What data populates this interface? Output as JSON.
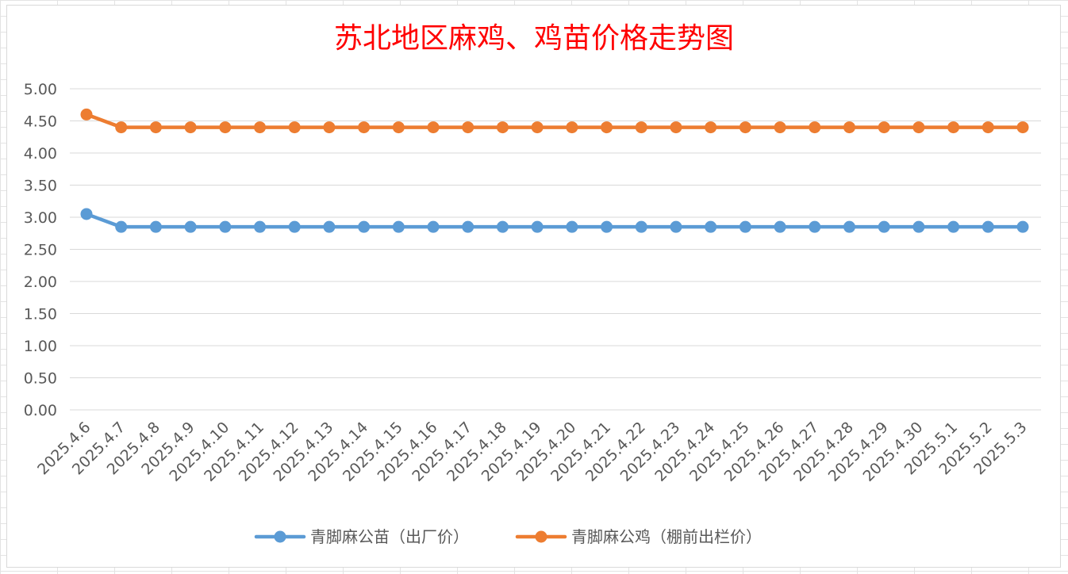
{
  "chart_data": {
    "type": "line",
    "title": "苏北地区麻鸡、鸡苗价格走势图",
    "title_color": "#ff0000",
    "categories": [
      "2025.4.6",
      "2025.4.7",
      "2025.4.8",
      "2025.4.9",
      "2025.4.10",
      "2025.4.11",
      "2025.4.12",
      "2025.4.13",
      "2025.4.14",
      "2025.4.15",
      "2025.4.16",
      "2025.4.17",
      "2025.4.18",
      "2025.4.19",
      "2025.4.20",
      "2025.4.21",
      "2025.4.22",
      "2025.4.23",
      "2025.4.24",
      "2025.4.25",
      "2025.4.26",
      "2025.4.27",
      "2025.4.28",
      "2025.4.29",
      "2025.4.30",
      "2025.5.1",
      "2025.5.2",
      "2025.5.3"
    ],
    "y_ticks": [
      "0.00",
      "0.50",
      "1.00",
      "1.50",
      "2.00",
      "2.50",
      "3.00",
      "3.50",
      "4.00",
      "4.50",
      "5.00"
    ],
    "ylim": [
      0,
      5
    ],
    "grid": true,
    "legend_position": "bottom",
    "series": [
      {
        "name": "青脚麻公苗（出厂价）",
        "color": "#5b9bd5",
        "values": [
          3.05,
          2.85,
          2.85,
          2.85,
          2.85,
          2.85,
          2.85,
          2.85,
          2.85,
          2.85,
          2.85,
          2.85,
          2.85,
          2.85,
          2.85,
          2.85,
          2.85,
          2.85,
          2.85,
          2.85,
          2.85,
          2.85,
          2.85,
          2.85,
          2.85,
          2.85,
          2.85,
          2.85
        ]
      },
      {
        "name": "青脚麻公鸡（棚前出栏价）",
        "color": "#ed7d31",
        "values": [
          4.6,
          4.4,
          4.4,
          4.4,
          4.4,
          4.4,
          4.4,
          4.4,
          4.4,
          4.4,
          4.4,
          4.4,
          4.4,
          4.4,
          4.4,
          4.4,
          4.4,
          4.4,
          4.4,
          4.4,
          4.4,
          4.4,
          4.4,
          4.4,
          4.4,
          4.4,
          4.4,
          4.4
        ]
      }
    ]
  }
}
